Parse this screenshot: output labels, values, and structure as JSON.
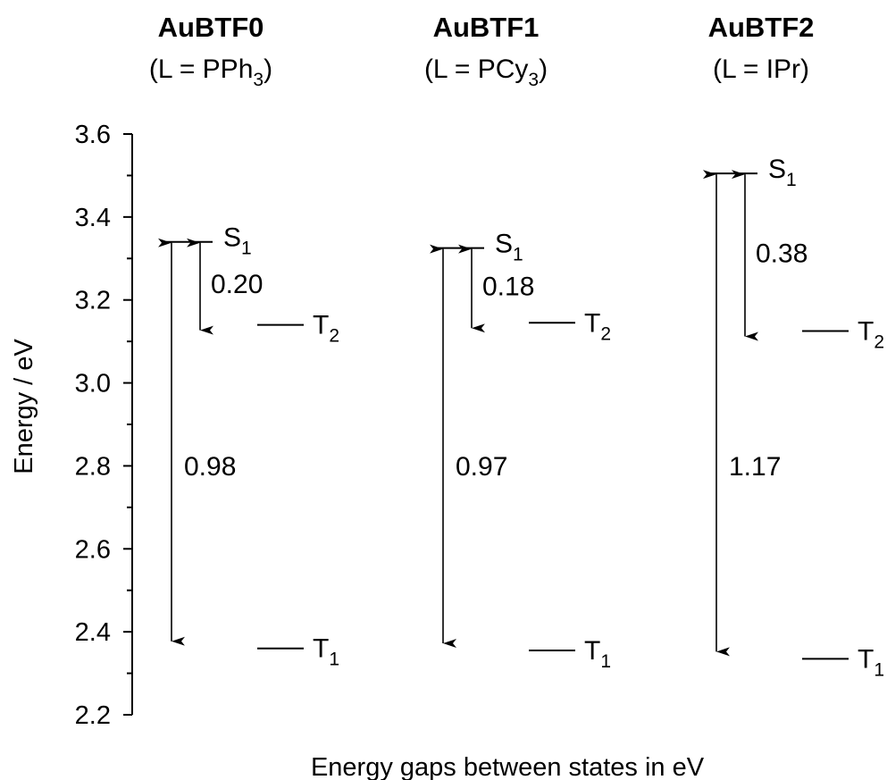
{
  "chart_data": {
    "type": "energy-level-diagram",
    "ylabel": "Energy / eV",
    "xlabel": "Energy gaps between states in eV",
    "ylim": [
      2.2,
      3.6
    ],
    "yticks": [
      "2.2",
      "2.4",
      "2.6",
      "2.8",
      "3.0",
      "3.2",
      "3.4",
      "3.6"
    ],
    "grid": false,
    "compounds": [
      {
        "name": "AuBTF0",
        "ligand_prefix": "(L = PPh",
        "ligand_sub": "3",
        "ligand_suffix": ")",
        "levels": [
          {
            "state": "S",
            "sub": "1",
            "energy": 3.34
          },
          {
            "state": "T",
            "sub": "2",
            "energy": 3.14
          },
          {
            "state": "T",
            "sub": "1",
            "energy": 2.36
          }
        ],
        "gaps": [
          {
            "from": "S1",
            "to": "T2",
            "label": "0.20"
          },
          {
            "from": "S1",
            "to": "T1",
            "label": "0.98"
          }
        ]
      },
      {
        "name": "AuBTF1",
        "ligand_prefix": "(L = PCy",
        "ligand_sub": "3",
        "ligand_suffix": ")",
        "levels": [
          {
            "state": "S",
            "sub": "1",
            "energy": 3.325
          },
          {
            "state": "T",
            "sub": "2",
            "energy": 3.145
          },
          {
            "state": "T",
            "sub": "1",
            "energy": 2.355
          }
        ],
        "gaps": [
          {
            "from": "S1",
            "to": "T2",
            "label": "0.18"
          },
          {
            "from": "S1",
            "to": "T1",
            "label": "0.97"
          }
        ]
      },
      {
        "name": "AuBTF2",
        "ligand_prefix": "(L = IPr)",
        "ligand_sub": "",
        "ligand_suffix": "",
        "levels": [
          {
            "state": "S",
            "sub": "1",
            "energy": 3.505
          },
          {
            "state": "T",
            "sub": "2",
            "energy": 3.125
          },
          {
            "state": "T",
            "sub": "1",
            "energy": 2.335
          }
        ],
        "gaps": [
          {
            "from": "S1",
            "to": "T2",
            "label": "0.38"
          },
          {
            "from": "S1",
            "to": "T1",
            "label": "1.17"
          }
        ]
      }
    ]
  }
}
